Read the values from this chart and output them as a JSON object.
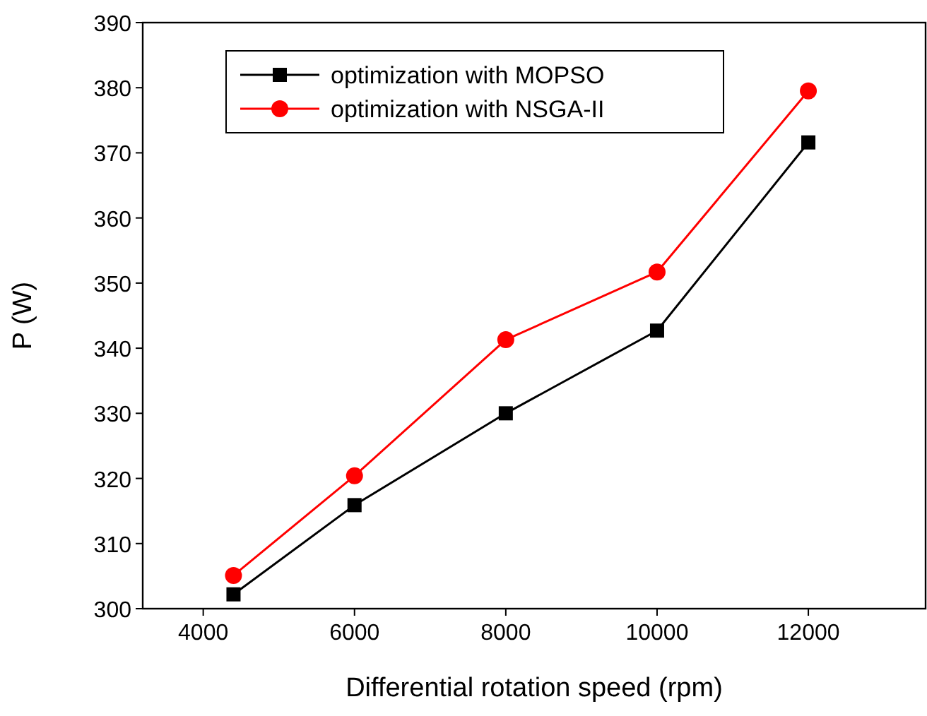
{
  "chart_data": {
    "type": "line",
    "xlabel": "Differential rotation speed (rpm)",
    "ylabel": "P (W)",
    "x": [
      4400,
      6000,
      8000,
      10000,
      12000
    ],
    "xlim": [
      3200,
      13550
    ],
    "xticks": [
      4000,
      6000,
      8000,
      10000,
      12000
    ],
    "ylim": [
      300,
      390
    ],
    "yticks": [
      300,
      310,
      320,
      330,
      340,
      350,
      360,
      370,
      380,
      390
    ],
    "grid": false,
    "legend": "top left",
    "line_style": "solid",
    "series": [
      {
        "name": "optimization with MOPSO",
        "color": "#000000",
        "marker": "square",
        "values": [
          302.2,
          315.9,
          330,
          342.7,
          371.6
        ]
      },
      {
        "name": "optimization with NSGA-II",
        "color": "#ff0000",
        "marker": "circle",
        "values": [
          305.1,
          320.4,
          341.3,
          351.7,
          379.5
        ]
      }
    ]
  }
}
